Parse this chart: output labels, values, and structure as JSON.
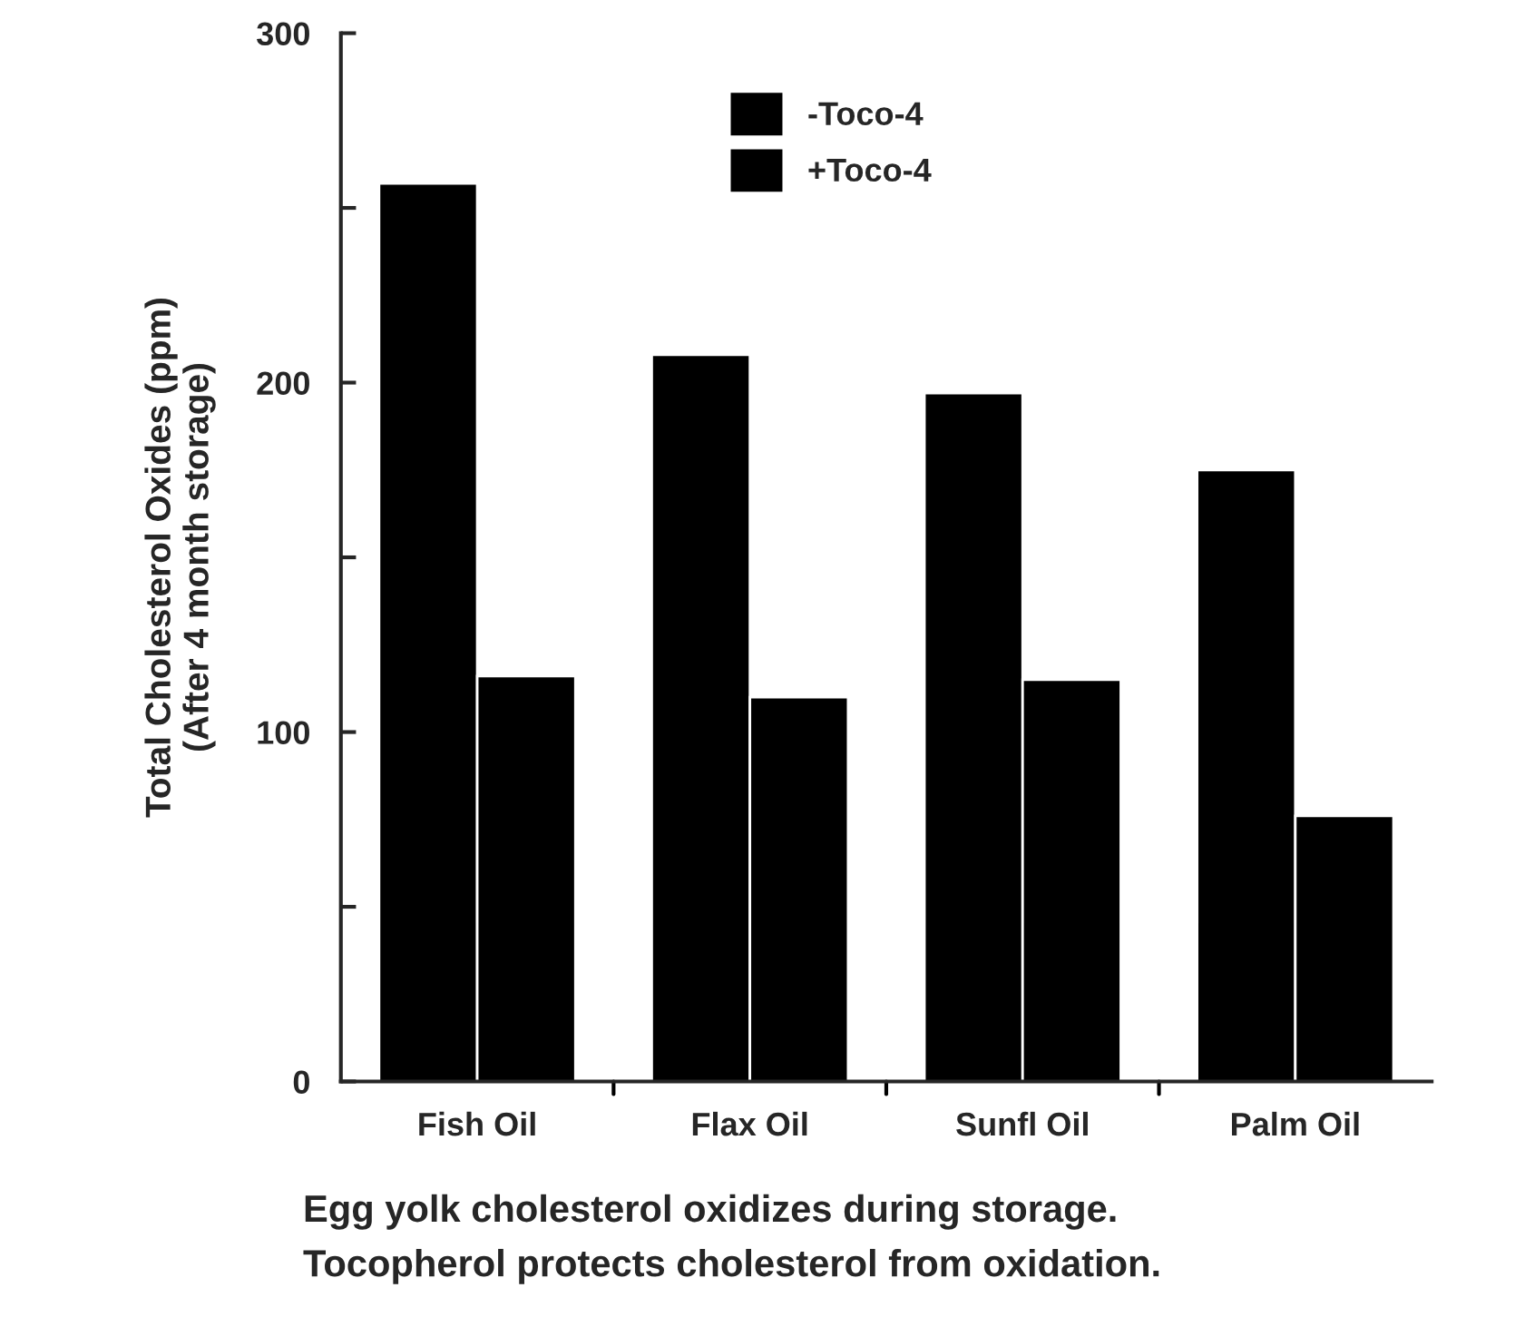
{
  "chart_data": {
    "type": "bar",
    "ylabel": "Total Cholesterol Oxides (ppm)\n(After 4 month storage)",
    "categories": [
      "Fish Oil",
      "Flax Oil",
      "Sunfl Oil",
      "Palm Oil"
    ],
    "series": [
      {
        "name": "-Toco-4",
        "color": "#000000",
        "values": [
          257,
          208,
          197,
          175
        ]
      },
      {
        "name": "+Toco-4",
        "color": "#000000",
        "values": [
          116,
          110,
          115,
          76
        ]
      }
    ],
    "ylim": [
      0,
      300
    ],
    "yticks": [
      0,
      {
        "value": 50,
        "label": null
      },
      100,
      {
        "value": 150,
        "label": null
      },
      200,
      {
        "value": 250,
        "label": null
      },
      300
    ],
    "grid": false,
    "legend": "top",
    "annotations": [
      "Egg yolk cholesterol oxidizes during storage.\nTocopherol protects cholesterol from oxidation."
    ]
  }
}
